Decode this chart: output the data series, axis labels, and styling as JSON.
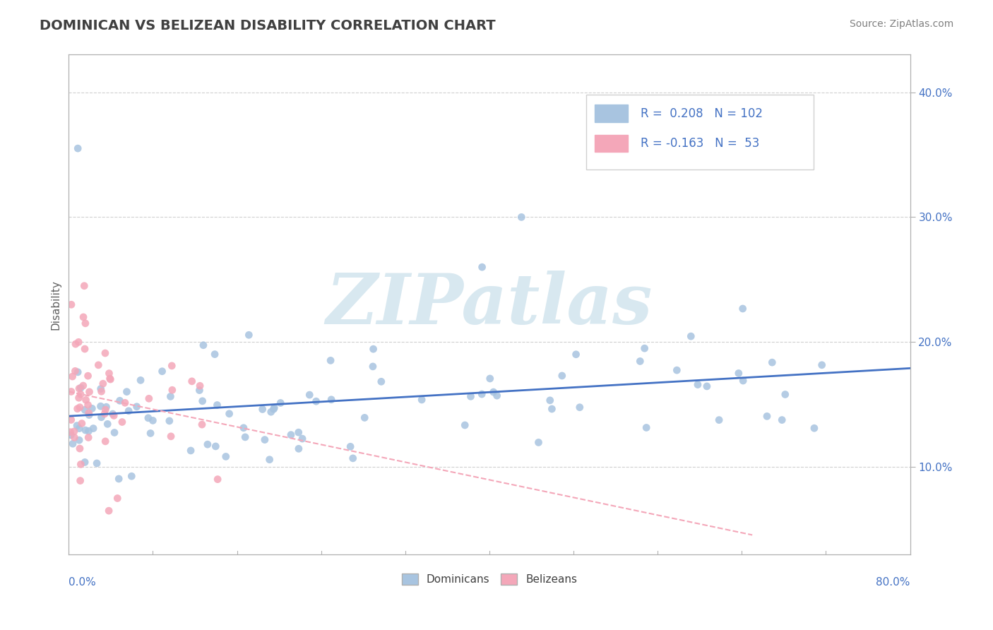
{
  "title": "DOMINICAN VS BELIZEAN DISABILITY CORRELATION CHART",
  "source_text": "Source: ZipAtlas.com",
  "ylabel": "Disability",
  "y_ticks": [
    0.1,
    0.2,
    0.3,
    0.4
  ],
  "y_tick_labels": [
    "10.0%",
    "20.0%",
    "30.0%",
    "40.0%"
  ],
  "x_range": [
    0.0,
    0.8
  ],
  "y_range": [
    0.03,
    0.43
  ],
  "r_dominican": 0.208,
  "n_dominican": 102,
  "r_belizean": -0.163,
  "n_belizean": 53,
  "blue_color": "#a8c4e0",
  "blue_line_color": "#4472c4",
  "pink_color": "#f4a7b9",
  "pink_line_color": "#f4a7b9",
  "background_color": "#ffffff",
  "grid_color": "#d0d0d0",
  "watermark_text": "ZIPatlas",
  "watermark_color": "#d8e8f0",
  "legend_r_color": "#4472c4",
  "title_color": "#404040",
  "axis_label_color": "#4472c4"
}
